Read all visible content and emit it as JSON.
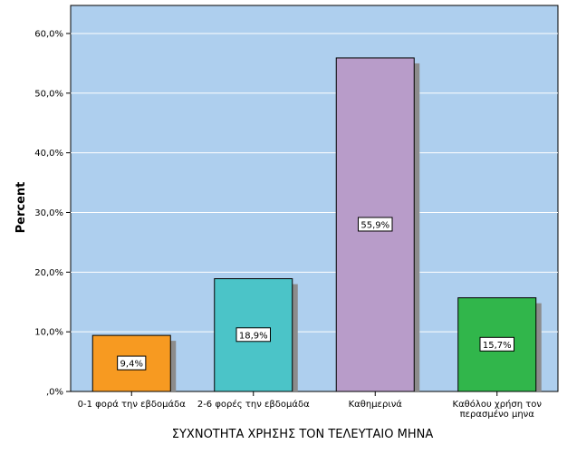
{
  "chart_data": {
    "type": "bar",
    "categories": [
      "0-1 φορά την εβδομάδα",
      "2-6 φορές την εβδομάδα",
      "Καθημερινά",
      "Καθόλου χρήση τον περασμένο μηνα"
    ],
    "category_lines": [
      [
        "0-1 φορά την εβδομάδα"
      ],
      [
        "2-6 φορές την εβδομάδα"
      ],
      [
        "Καθημερινά"
      ],
      [
        "Καθόλου χρήση τον",
        "περασμένο μηνα"
      ]
    ],
    "values": [
      9.4,
      18.9,
      55.9,
      15.7
    ],
    "data_labels": [
      "9,4%",
      "18,9%",
      "55,9%",
      "15,7%"
    ],
    "colors": [
      "#f79a21",
      "#4bc4c8",
      "#b89cc9",
      "#31b64b"
    ],
    "yticks": [
      0,
      10,
      20,
      30,
      40,
      50,
      60
    ],
    "ytick_labels": [
      ",0%",
      "10,0%",
      "20,0%",
      "30,0%",
      "40,0%",
      "50,0%",
      "60,0%"
    ],
    "ylim": [
      0,
      64.7
    ],
    "ylabel": "Percent",
    "xlabel": "ΣΥΧΝΟΤΗΤΑ ΧΡΗΣΗΣ ΤΟΝ ΤΕΛΕΥΤΑΙΟ ΜΗΝΑ",
    "plot_background": "#aecfee",
    "shadow_color": "#8c8c8c",
    "grid": true
  }
}
